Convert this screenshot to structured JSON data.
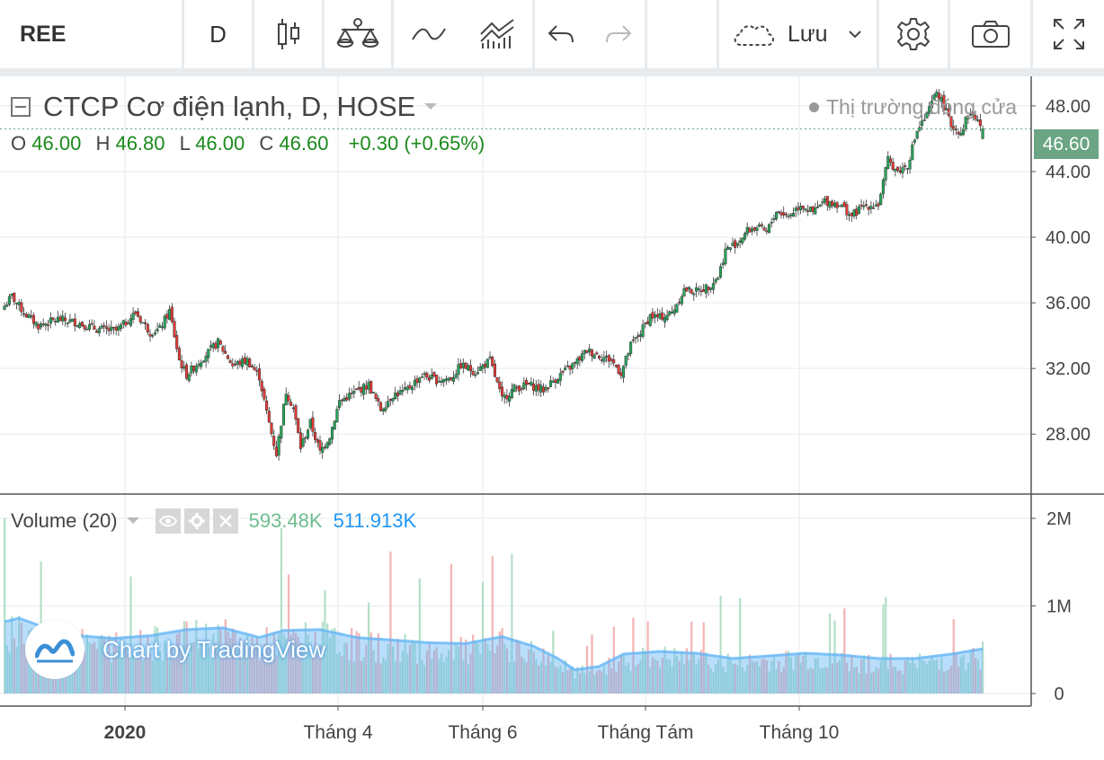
{
  "toolbar": {
    "symbol": "REE",
    "interval": "D",
    "save_label": "Lưu",
    "icons": [
      "candles-icon",
      "compare-icon",
      "indicators-icon",
      "templates-icon",
      "undo-icon",
      "redo-icon",
      "cloud-icon",
      "chevron-down-icon",
      "settings-icon",
      "camera-icon",
      "fullscreen-icon"
    ]
  },
  "legend": {
    "title": "CTCP Cơ điện lạnh, D, HOSE",
    "o_label": "O",
    "o_value": "46.00",
    "h_label": "H",
    "h_value": "46.80",
    "l_label": "L",
    "l_value": "46.00",
    "c_label": "C",
    "c_value": "46.60",
    "change": "+0.30 (+0.65%)",
    "market_status": "Thị trường đóng cửa"
  },
  "price_badge": "46.60",
  "volume_legend": {
    "title": "Volume (20)",
    "value": "593.48K",
    "ma_value": "511.913K"
  },
  "watermark": "Chart by TradingView",
  "colors": {
    "up": "#26a65b",
    "down": "#e53935",
    "volume_up": "#a7d9bd",
    "volume_down": "#f2a6a6",
    "volume_ma": "#64b5f6",
    "badge": "#6ba583"
  },
  "chart_data": {
    "type": "candlestick",
    "price_axis": {
      "ticks": [
        "28.00",
        "32.00",
        "36.00",
        "40.00",
        "44.00",
        "48.00"
      ],
      "ylim": [
        24.4,
        49.8
      ]
    },
    "volume_axis": {
      "ticks": [
        "0",
        "1M",
        "2M"
      ],
      "ylim": [
        0,
        2.1
      ]
    },
    "time_axis": [
      "2020",
      "Tháng 4",
      "Tháng 6",
      "Tháng Tám",
      "Tháng 10"
    ],
    "close_series": [
      {
        "bar": 0,
        "close": 35.8
      },
      {
        "bar": 3,
        "close": 36.4
      },
      {
        "bar": 8,
        "close": 35.4
      },
      {
        "bar": 14,
        "close": 34.6
      },
      {
        "bar": 22,
        "close": 35.0
      },
      {
        "bar": 30,
        "close": 34.8
      },
      {
        "bar": 38,
        "close": 34.4
      },
      {
        "bar": 46,
        "close": 34.3
      },
      {
        "bar": 50,
        "close": 34.8
      },
      {
        "bar": 54,
        "close": 35.4
      },
      {
        "bar": 60,
        "close": 34.2
      },
      {
        "bar": 64,
        "close": 34.4
      },
      {
        "bar": 68,
        "close": 35.5
      },
      {
        "bar": 72,
        "close": 32.5
      },
      {
        "bar": 75,
        "close": 31.6
      },
      {
        "bar": 80,
        "close": 32.4
      },
      {
        "bar": 88,
        "close": 33.6
      },
      {
        "bar": 94,
        "close": 32.2
      },
      {
        "bar": 100,
        "close": 32.5
      },
      {
        "bar": 105,
        "close": 31.5
      },
      {
        "bar": 108,
        "close": 29.3
      },
      {
        "bar": 112,
        "close": 26.8
      },
      {
        "bar": 116,
        "close": 30.6
      },
      {
        "bar": 119,
        "close": 29.6
      },
      {
        "bar": 122,
        "close": 27.2
      },
      {
        "bar": 126,
        "close": 28.7
      },
      {
        "bar": 130,
        "close": 26.9
      },
      {
        "bar": 134,
        "close": 27.9
      },
      {
        "bar": 138,
        "close": 30.0
      },
      {
        "bar": 145,
        "close": 30.6
      },
      {
        "bar": 150,
        "close": 31.0
      },
      {
        "bar": 155,
        "close": 29.5
      },
      {
        "bar": 160,
        "close": 30.4
      },
      {
        "bar": 165,
        "close": 30.6
      },
      {
        "bar": 172,
        "close": 31.6
      },
      {
        "bar": 178,
        "close": 31.3
      },
      {
        "bar": 184,
        "close": 31.4
      },
      {
        "bar": 188,
        "close": 32.2
      },
      {
        "bar": 194,
        "close": 31.8
      },
      {
        "bar": 200,
        "close": 32.5
      },
      {
        "bar": 205,
        "close": 30.1
      },
      {
        "bar": 210,
        "close": 30.8
      },
      {
        "bar": 216,
        "close": 31.0
      },
      {
        "bar": 222,
        "close": 30.7
      },
      {
        "bar": 228,
        "close": 31.5
      },
      {
        "bar": 235,
        "close": 32.3
      },
      {
        "bar": 240,
        "close": 33.1
      },
      {
        "bar": 245,
        "close": 32.8
      },
      {
        "bar": 250,
        "close": 32.5
      },
      {
        "bar": 254,
        "close": 31.7
      },
      {
        "bar": 258,
        "close": 33.4
      },
      {
        "bar": 262,
        "close": 34.2
      },
      {
        "bar": 266,
        "close": 35.2
      },
      {
        "bar": 270,
        "close": 35.1
      },
      {
        "bar": 275,
        "close": 35.4
      },
      {
        "bar": 280,
        "close": 36.8
      },
      {
        "bar": 285,
        "close": 36.7
      },
      {
        "bar": 290,
        "close": 37.0
      },
      {
        "bar": 294,
        "close": 37.6
      },
      {
        "bar": 297,
        "close": 39.2
      },
      {
        "bar": 302,
        "close": 39.7
      },
      {
        "bar": 306,
        "close": 40.4
      },
      {
        "bar": 310,
        "close": 40.6
      },
      {
        "bar": 314,
        "close": 40.3
      },
      {
        "bar": 318,
        "close": 41.6
      },
      {
        "bar": 323,
        "close": 41.3
      },
      {
        "bar": 328,
        "close": 42.0
      },
      {
        "bar": 333,
        "close": 41.5
      },
      {
        "bar": 338,
        "close": 42.2
      },
      {
        "bar": 344,
        "close": 42.0
      },
      {
        "bar": 349,
        "close": 41.3
      },
      {
        "bar": 354,
        "close": 41.9
      },
      {
        "bar": 360,
        "close": 42.0
      },
      {
        "bar": 364,
        "close": 44.7
      },
      {
        "bar": 368,
        "close": 44.0
      },
      {
        "bar": 372,
        "close": 44.4
      },
      {
        "bar": 376,
        "close": 46.5
      },
      {
        "bar": 380,
        "close": 47.4
      },
      {
        "bar": 384,
        "close": 48.9
      },
      {
        "bar": 387,
        "close": 48.0
      },
      {
        "bar": 390,
        "close": 46.8
      },
      {
        "bar": 394,
        "close": 46.4
      },
      {
        "bar": 397,
        "close": 47.5
      },
      {
        "bar": 400,
        "close": 47.3
      },
      {
        "bar": 403,
        "close": 46.6
      }
    ],
    "volume_ma_series": [
      {
        "bar": 0,
        "value": 0.82
      },
      {
        "bar": 6,
        "value": 0.86
      },
      {
        "bar": 16,
        "value": 0.76
      },
      {
        "bar": 30,
        "value": 0.66
      },
      {
        "bar": 45,
        "value": 0.63
      },
      {
        "bar": 60,
        "value": 0.66
      },
      {
        "bar": 75,
        "value": 0.73
      },
      {
        "bar": 90,
        "value": 0.75
      },
      {
        "bar": 105,
        "value": 0.64
      },
      {
        "bar": 115,
        "value": 0.72
      },
      {
        "bar": 130,
        "value": 0.73
      },
      {
        "bar": 145,
        "value": 0.64
      },
      {
        "bar": 160,
        "value": 0.61
      },
      {
        "bar": 175,
        "value": 0.58
      },
      {
        "bar": 190,
        "value": 0.57
      },
      {
        "bar": 205,
        "value": 0.65
      },
      {
        "bar": 218,
        "value": 0.54
      },
      {
        "bar": 228,
        "value": 0.4
      },
      {
        "bar": 235,
        "value": 0.27
      },
      {
        "bar": 245,
        "value": 0.31
      },
      {
        "bar": 255,
        "value": 0.45
      },
      {
        "bar": 270,
        "value": 0.48
      },
      {
        "bar": 285,
        "value": 0.46
      },
      {
        "bar": 300,
        "value": 0.4
      },
      {
        "bar": 315,
        "value": 0.43
      },
      {
        "bar": 330,
        "value": 0.46
      },
      {
        "bar": 345,
        "value": 0.44
      },
      {
        "bar": 360,
        "value": 0.4
      },
      {
        "bar": 375,
        "value": 0.4
      },
      {
        "bar": 390,
        "value": 0.45
      },
      {
        "bar": 403,
        "value": 0.51
      }
    ],
    "last_bar": {
      "open": 46.0,
      "high": 46.8,
      "low": 46.0,
      "close": 46.6,
      "volume": 0.59348
    }
  }
}
